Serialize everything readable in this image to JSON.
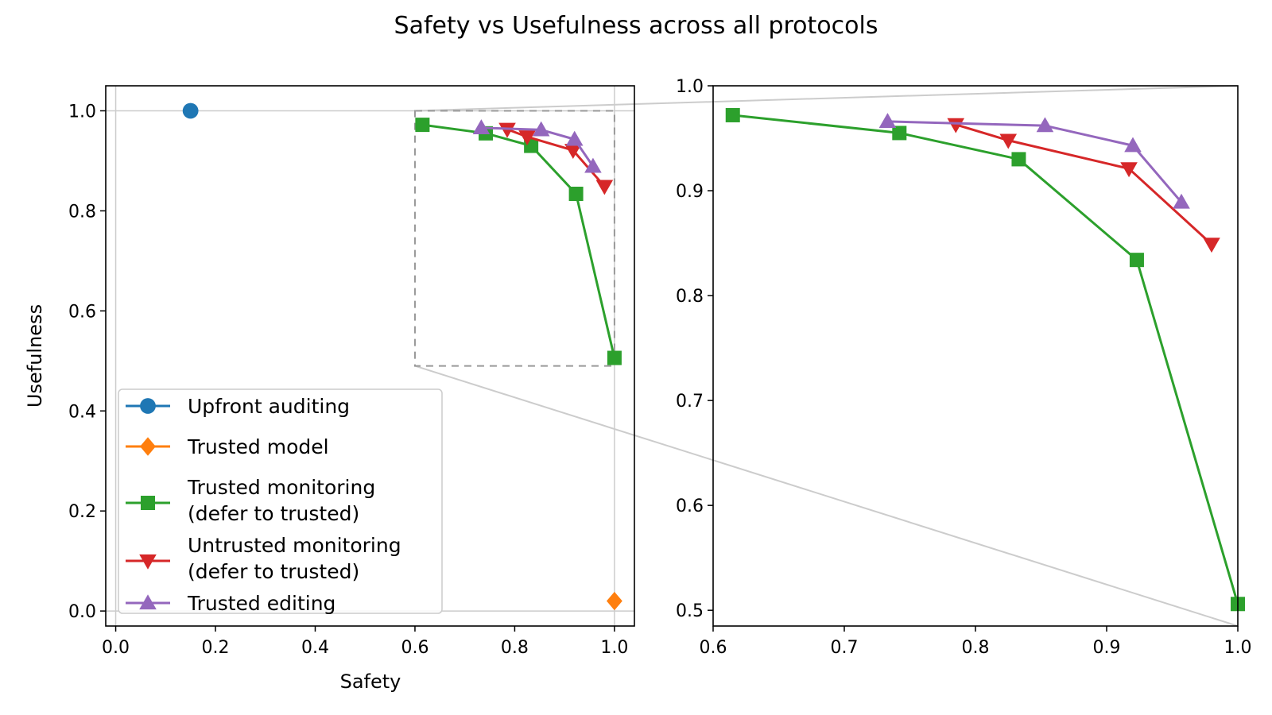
{
  "figure": {
    "title": "Safety vs Usefulness across all protocols"
  },
  "chart_data": [
    {
      "type": "line",
      "panel": "main",
      "xlabel": "Safety",
      "ylabel": "Usefulness",
      "xlim": [
        -0.02,
        1.04
      ],
      "ylim": [
        -0.03,
        1.05
      ],
      "xticks": [
        "0.0",
        "0.2",
        "0.4",
        "0.6",
        "0.8",
        "1.0"
      ],
      "yticks": [
        "0.0",
        "0.2",
        "0.4",
        "0.6",
        "0.8",
        "1.0"
      ],
      "grid": false,
      "legend_position": "lower-left",
      "inset_region": {
        "xlim": [
          0.6,
          1.0
        ],
        "ylim": [
          0.49,
          1.0
        ]
      },
      "series": [
        {
          "name": "Upfront auditing",
          "color": "#1f77b4",
          "marker": "circle",
          "x": [
            0.15
          ],
          "y": [
            1.0
          ]
        },
        {
          "name": "Trusted model",
          "color": "#ff7f0e",
          "marker": "diamond",
          "x": [
            1.0
          ],
          "y": [
            0.02
          ]
        },
        {
          "name": "Trusted monitoring\n(defer to trusted)",
          "color": "#2ca02c",
          "marker": "square",
          "x": [
            0.615,
            0.742,
            0.833,
            0.923,
            1.0
          ],
          "y": [
            0.972,
            0.955,
            0.93,
            0.834,
            0.506
          ]
        },
        {
          "name": "Untrusted monitoring\n(defer to trusted)",
          "color": "#d62728",
          "marker": "triangle-down",
          "x": [
            0.785,
            0.825,
            0.917,
            0.98
          ],
          "y": [
            0.963,
            0.948,
            0.921,
            0.849
          ]
        },
        {
          "name": "Trusted editing",
          "color": "#9467bd",
          "marker": "triangle-up",
          "x": [
            0.733,
            0.853,
            0.92,
            0.957
          ],
          "y": [
            0.966,
            0.962,
            0.943,
            0.889
          ]
        }
      ]
    },
    {
      "type": "line",
      "panel": "inset",
      "xlabel": "",
      "ylabel": "",
      "xlim": [
        0.6,
        1.0
      ],
      "ylim": [
        0.485,
        1.0
      ],
      "xticks": [
        "0.6",
        "0.7",
        "0.8",
        "0.9",
        "1.0"
      ],
      "yticks": [
        "0.5",
        "0.6",
        "0.7",
        "0.8",
        "0.9",
        "1.0"
      ],
      "grid": false,
      "series": [
        {
          "color": "#2ca02c",
          "marker": "square",
          "x": [
            0.615,
            0.742,
            0.833,
            0.923,
            1.0
          ],
          "y": [
            0.972,
            0.955,
            0.93,
            0.834,
            0.506
          ]
        },
        {
          "color": "#d62728",
          "marker": "triangle-down",
          "x": [
            0.785,
            0.825,
            0.917,
            0.98
          ],
          "y": [
            0.963,
            0.948,
            0.921,
            0.849
          ]
        },
        {
          "color": "#9467bd",
          "marker": "triangle-up",
          "x": [
            0.733,
            0.853,
            0.92,
            0.957
          ],
          "y": [
            0.966,
            0.962,
            0.943,
            0.889
          ]
        }
      ]
    }
  ]
}
